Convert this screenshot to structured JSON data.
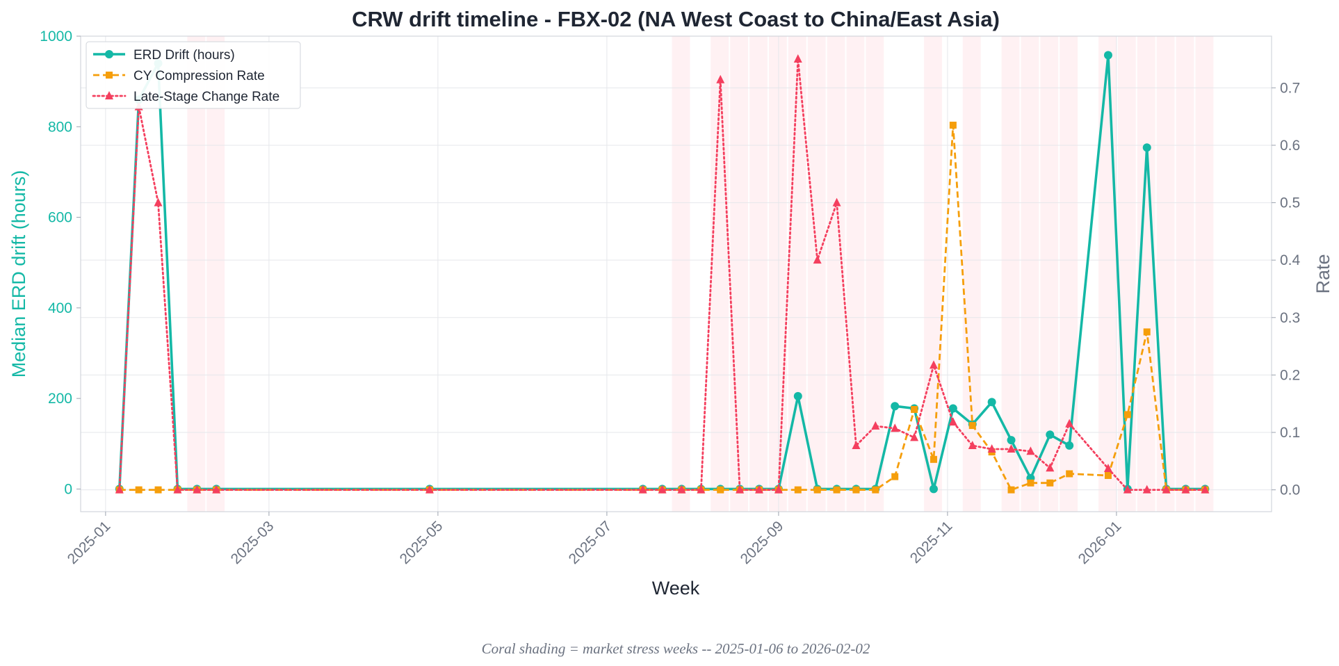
{
  "chart_data": {
    "type": "line",
    "title": "CRW drift timeline - FBX-02 (NA West Coast to China/East Asia)",
    "xlabel": "Week",
    "ylabel_left": "Median ERD drift (hours)",
    "ylabel_right": "Rate",
    "xlim": [
      "2024-12-23",
      "2026-02-26"
    ],
    "ylim_left": [
      -50,
      1000
    ],
    "ylim_right": [
      -0.038,
      0.79
    ],
    "x_ticks": [
      "2025-01",
      "2025-03",
      "2025-05",
      "2025-07",
      "2025-09",
      "2025-11",
      "2026-01"
    ],
    "y_ticks_left": [
      0,
      200,
      400,
      600,
      800,
      1000
    ],
    "y_ticks_right": [
      0.0,
      0.1,
      0.2,
      0.3,
      0.4,
      0.5,
      0.6,
      0.7
    ],
    "y_tick_labels_right": [
      "0.0",
      "0.1",
      "0.2",
      "0.3",
      "0.4",
      "0.5",
      "0.6",
      "0.7"
    ],
    "grid": true,
    "legend_position": "top-left",
    "stress_weeks": [
      "2025-02-03",
      "2025-02-10",
      "2025-07-28",
      "2025-08-11",
      "2025-08-18",
      "2025-08-25",
      "2025-09-01",
      "2025-09-08",
      "2025-09-15",
      "2025-09-22",
      "2025-09-29",
      "2025-10-06",
      "2025-10-27",
      "2025-11-10",
      "2025-11-24",
      "2025-12-01",
      "2025-12-08",
      "2025-12-15",
      "2025-12-29",
      "2026-01-05",
      "2026-01-12",
      "2026-01-19",
      "2026-01-26",
      "2026-02-02"
    ],
    "series": [
      {
        "name": "ERD Drift (hours)",
        "axis": "left",
        "color": "#14b8a6",
        "style": "solid",
        "marker": "circle",
        "points": [
          [
            "2025-01-06",
            0
          ],
          [
            "2025-01-13",
            860
          ],
          [
            "2025-01-20",
            940
          ],
          [
            "2025-01-27",
            0
          ],
          [
            "2025-02-03",
            0
          ],
          [
            "2025-02-10",
            0
          ],
          [
            "2025-04-28",
            0
          ],
          [
            "2025-07-14",
            0
          ],
          [
            "2025-07-21",
            0
          ],
          [
            "2025-07-28",
            0
          ],
          [
            "2025-08-04",
            0
          ],
          [
            "2025-08-11",
            0
          ],
          [
            "2025-08-18",
            0
          ],
          [
            "2025-08-25",
            0
          ],
          [
            "2025-09-01",
            0
          ],
          [
            "2025-09-08",
            205
          ],
          [
            "2025-09-15",
            0
          ],
          [
            "2025-09-22",
            0
          ],
          [
            "2025-09-29",
            0
          ],
          [
            "2025-10-06",
            0
          ],
          [
            "2025-10-13",
            183
          ],
          [
            "2025-10-20",
            178
          ],
          [
            "2025-10-27",
            0
          ],
          [
            "2025-11-03",
            178
          ],
          [
            "2025-11-10",
            143
          ],
          [
            "2025-11-17",
            192
          ],
          [
            "2025-11-24",
            108
          ],
          [
            "2025-12-01",
            24
          ],
          [
            "2025-12-08",
            120
          ],
          [
            "2025-12-15",
            96
          ],
          [
            "2025-12-29",
            958
          ],
          [
            "2026-01-05",
            0
          ],
          [
            "2026-01-12",
            754
          ],
          [
            "2026-01-19",
            0
          ],
          [
            "2026-01-26",
            0
          ],
          [
            "2026-02-02",
            0
          ]
        ]
      },
      {
        "name": "CY Compression Rate",
        "axis": "right",
        "color": "#f59e0b",
        "style": "dashed",
        "marker": "square",
        "points": [
          [
            "2025-01-06",
            0
          ],
          [
            "2025-01-13",
            0
          ],
          [
            "2025-01-20",
            0
          ],
          [
            "2025-01-27",
            0
          ],
          [
            "2025-02-03",
            0
          ],
          [
            "2025-02-10",
            0
          ],
          [
            "2025-04-28",
            0
          ],
          [
            "2025-07-14",
            0
          ],
          [
            "2025-07-21",
            0
          ],
          [
            "2025-07-28",
            0
          ],
          [
            "2025-08-04",
            0
          ],
          [
            "2025-08-11",
            0
          ],
          [
            "2025-08-18",
            0
          ],
          [
            "2025-08-25",
            0
          ],
          [
            "2025-09-01",
            0
          ],
          [
            "2025-09-08",
            0
          ],
          [
            "2025-09-15",
            0
          ],
          [
            "2025-09-22",
            0
          ],
          [
            "2025-09-29",
            0
          ],
          [
            "2025-10-06",
            0
          ],
          [
            "2025-10-13",
            0.023
          ],
          [
            "2025-10-20",
            0.14
          ],
          [
            "2025-10-27",
            0.053
          ],
          [
            "2025-11-03",
            0.635
          ],
          [
            "2025-11-10",
            0.112
          ],
          [
            "2025-11-17",
            0.066
          ],
          [
            "2025-11-24",
            0.0
          ],
          [
            "2025-12-01",
            0.012
          ],
          [
            "2025-12-08",
            0.012
          ],
          [
            "2025-12-15",
            0.028
          ],
          [
            "2025-12-29",
            0.025
          ],
          [
            "2026-01-05",
            0.131
          ],
          [
            "2026-01-12",
            0.275
          ],
          [
            "2026-01-19",
            0
          ],
          [
            "2026-01-26",
            0
          ],
          [
            "2026-02-02",
            0
          ]
        ]
      },
      {
        "name": "Late-Stage Change Rate",
        "axis": "right",
        "color": "#f43f5e",
        "style": "dotted",
        "marker": "triangle",
        "points": [
          [
            "2025-01-06",
            0
          ],
          [
            "2025-01-13",
            0.667
          ],
          [
            "2025-01-20",
            0.5
          ],
          [
            "2025-01-27",
            0
          ],
          [
            "2025-02-03",
            0
          ],
          [
            "2025-02-10",
            0
          ],
          [
            "2025-04-28",
            0
          ],
          [
            "2025-07-14",
            0
          ],
          [
            "2025-07-21",
            0
          ],
          [
            "2025-07-28",
            0
          ],
          [
            "2025-08-04",
            0
          ],
          [
            "2025-08-11",
            0.714
          ],
          [
            "2025-08-18",
            0
          ],
          [
            "2025-08-25",
            0
          ],
          [
            "2025-09-01",
            0
          ],
          [
            "2025-09-08",
            0.75
          ],
          [
            "2025-09-15",
            0.4
          ],
          [
            "2025-09-22",
            0.5
          ],
          [
            "2025-09-29",
            0.077
          ],
          [
            "2025-10-06",
            0.111
          ],
          [
            "2025-10-13",
            0.107
          ],
          [
            "2025-10-20",
            0.091
          ],
          [
            "2025-10-27",
            0.217
          ],
          [
            "2025-11-03",
            0.118
          ],
          [
            "2025-11-10",
            0.077
          ],
          [
            "2025-11-17",
            0.071
          ],
          [
            "2025-11-24",
            0.071
          ],
          [
            "2025-12-01",
            0.067
          ],
          [
            "2025-12-08",
            0.038
          ],
          [
            "2025-12-15",
            0.115
          ],
          [
            "2025-12-29",
            0.037
          ],
          [
            "2026-01-05",
            0
          ],
          [
            "2026-01-12",
            0
          ],
          [
            "2026-01-19",
            0
          ],
          [
            "2026-01-26",
            0
          ],
          [
            "2026-02-02",
            0
          ]
        ]
      }
    ],
    "footnote": "Coral shading = market stress weeks  --  2025-01-06 to 2026-02-02"
  }
}
